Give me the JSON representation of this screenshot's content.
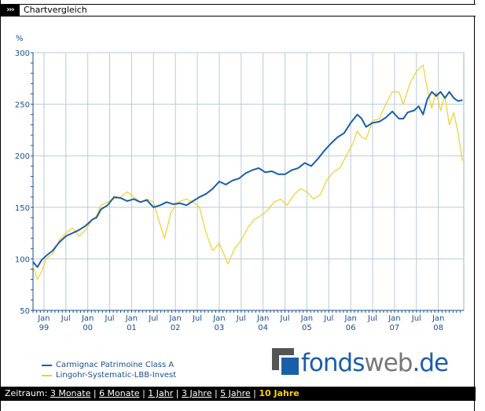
{
  "header": {
    "arrows": "›››",
    "title": "Chartvergleich"
  },
  "chart_data": {
    "type": "line",
    "ylabel": "%",
    "ylim": [
      50,
      300
    ],
    "yticks": [
      50,
      100,
      150,
      200,
      250,
      300
    ],
    "xlim": [
      1998.75,
      2008.58
    ],
    "x_ticks": [
      {
        "t": 1999.0,
        "label": "Jan",
        "year": "99"
      },
      {
        "t": 1999.5,
        "label": "Jul",
        "year": ""
      },
      {
        "t": 2000.0,
        "label": "Jan",
        "year": "00"
      },
      {
        "t": 2000.5,
        "label": "Jul",
        "year": ""
      },
      {
        "t": 2001.0,
        "label": "Jan",
        "year": "01"
      },
      {
        "t": 2001.5,
        "label": "Jul",
        "year": ""
      },
      {
        "t": 2002.0,
        "label": "Jan",
        "year": "02"
      },
      {
        "t": 2002.5,
        "label": "Jul",
        "year": ""
      },
      {
        "t": 2003.0,
        "label": "Jan",
        "year": "03"
      },
      {
        "t": 2003.5,
        "label": "Jul",
        "year": ""
      },
      {
        "t": 2004.0,
        "label": "Jan",
        "year": "04"
      },
      {
        "t": 2004.5,
        "label": "Jul",
        "year": ""
      },
      {
        "t": 2005.0,
        "label": "Jan",
        "year": "05"
      },
      {
        "t": 2005.5,
        "label": "Jul",
        "year": ""
      },
      {
        "t": 2006.0,
        "label": "Jan",
        "year": "06"
      },
      {
        "t": 2006.5,
        "label": "Jul",
        "year": ""
      },
      {
        "t": 2007.0,
        "label": "Jan",
        "year": "07"
      },
      {
        "t": 2007.5,
        "label": "Jul",
        "year": ""
      },
      {
        "t": 2008.0,
        "label": "Jan",
        "year": "08"
      }
    ],
    "grid": true,
    "legend_position": "bottom-left",
    "series": [
      {
        "name": "Carmignac Patrimoine Class A",
        "color": "#1b5ea8",
        "x": [
          1998.75,
          1998.85,
          1998.95,
          1999.05,
          1999.2,
          1999.35,
          1999.5,
          1999.65,
          1999.8,
          1999.95,
          2000.1,
          2000.2,
          2000.3,
          2000.45,
          2000.6,
          2000.75,
          2000.9,
          2001.05,
          2001.2,
          2001.35,
          2001.5,
          2001.65,
          2001.8,
          2001.95,
          2002.1,
          2002.25,
          2002.4,
          2002.55,
          2002.7,
          2002.85,
          2003.0,
          2003.15,
          2003.3,
          2003.45,
          2003.6,
          2003.75,
          2003.9,
          2004.05,
          2004.2,
          2004.35,
          2004.5,
          2004.65,
          2004.8,
          2004.95,
          2005.1,
          2005.25,
          2005.4,
          2005.55,
          2005.7,
          2005.85,
          2006.0,
          2006.15,
          2006.25,
          2006.35,
          2006.5,
          2006.65,
          2006.8,
          2006.95,
          2007.1,
          2007.2,
          2007.3,
          2007.45,
          2007.55,
          2007.65,
          2007.75,
          2007.85,
          2007.95,
          2008.05,
          2008.15,
          2008.25,
          2008.35,
          2008.45,
          2008.55
        ],
        "values": [
          97,
          92,
          99,
          103,
          108,
          116,
          122,
          125,
          128,
          132,
          138,
          140,
          148,
          152,
          160,
          159,
          156,
          158,
          155,
          157,
          150,
          152,
          155,
          153,
          154,
          152,
          156,
          160,
          163,
          168,
          175,
          172,
          176,
          178,
          183,
          186,
          188,
          184,
          185,
          182,
          182,
          186,
          188,
          193,
          190,
          197,
          205,
          212,
          218,
          222,
          232,
          240,
          236,
          228,
          232,
          233,
          237,
          243,
          236,
          236,
          242,
          244,
          248,
          240,
          255,
          262,
          258,
          262,
          256,
          262,
          256,
          253,
          254
        ]
      },
      {
        "name": "Lingohr-Systematic-LBB-Invest",
        "color": "#f0d02a",
        "x": [
          1998.75,
          1998.85,
          1998.95,
          1999.05,
          1999.2,
          1999.35,
          1999.5,
          1999.65,
          1999.8,
          1999.95,
          2000.1,
          2000.2,
          2000.3,
          2000.45,
          2000.6,
          2000.75,
          2000.9,
          2001.05,
          2001.2,
          2001.35,
          2001.5,
          2001.6,
          2001.75,
          2001.9,
          2002.05,
          2002.25,
          2002.4,
          2002.55,
          2002.7,
          2002.85,
          2003.0,
          2003.1,
          2003.2,
          2003.35,
          2003.5,
          2003.65,
          2003.8,
          2003.95,
          2004.1,
          2004.25,
          2004.4,
          2004.55,
          2004.7,
          2004.85,
          2005.0,
          2005.15,
          2005.3,
          2005.45,
          2005.6,
          2005.75,
          2005.9,
          2006.05,
          2006.15,
          2006.25,
          2006.35,
          2006.5,
          2006.65,
          2006.8,
          2006.95,
          2007.1,
          2007.2,
          2007.35,
          2007.5,
          2007.65,
          2007.75,
          2007.85,
          2007.95,
          2008.05,
          2008.15,
          2008.25,
          2008.35,
          2008.45,
          2008.55
        ],
        "values": [
          93,
          80,
          88,
          100,
          105,
          118,
          125,
          130,
          122,
          128,
          138,
          142,
          152,
          155,
          158,
          160,
          165,
          160,
          155,
          158,
          155,
          140,
          120,
          145,
          155,
          158,
          155,
          150,
          125,
          108,
          115,
          105,
          95,
          110,
          118,
          130,
          138,
          142,
          147,
          155,
          158,
          152,
          162,
          168,
          165,
          158,
          162,
          176,
          184,
          188,
          200,
          212,
          224,
          218,
          216,
          234,
          236,
          250,
          262,
          262,
          250,
          270,
          282,
          288,
          264,
          246,
          262,
          244,
          258,
          230,
          242,
          222,
          195
        ]
      }
    ]
  },
  "legend": {
    "items": [
      {
        "label": "Carmignac Patrimoine Class A",
        "color": "#1b5ea8"
      },
      {
        "label": "Lingohr-Systematic-LBB-Invest",
        "color": "#f0d02a"
      }
    ]
  },
  "logo": {
    "word1": "fonds",
    "word2": "web",
    "word3": ".de"
  },
  "footer": {
    "label": "Zeitraum:",
    "options": [
      "3 Monate",
      "6 Monate",
      "1 Jahr",
      "3 Jahre",
      "5 Jahre",
      "10 Jahre"
    ],
    "active_index": 5
  }
}
